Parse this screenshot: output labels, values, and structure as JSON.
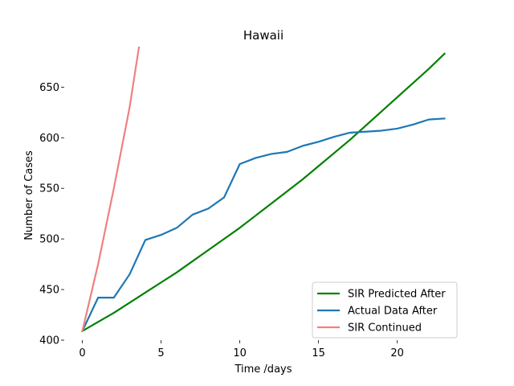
{
  "chart_data": {
    "type": "line",
    "title": "Hawaii",
    "xlabel": "Time /days",
    "ylabel": "Number of Cases",
    "xlim": [
      -1.15,
      24.15
    ],
    "ylim": [
      400,
      690
    ],
    "xticks": [
      0,
      5,
      10,
      15,
      20
    ],
    "yticks": [
      400,
      450,
      500,
      550,
      600,
      650
    ],
    "grid": false,
    "legend_position": "lower-right",
    "series": [
      {
        "name": "SIR Predicted After",
        "color": "#008000",
        "x": [
          0,
          1,
          2,
          3,
          4,
          5,
          6,
          7,
          8,
          9,
          10,
          11,
          12,
          13,
          14,
          15,
          16,
          17,
          18,
          19,
          20,
          21,
          22,
          23
        ],
        "y": [
          409,
          418,
          427,
          437,
          447,
          457,
          467,
          478,
          489,
          500,
          511,
          523,
          535,
          547,
          559,
          572,
          585,
          598,
          612,
          626,
          640,
          654,
          668,
          683
        ]
      },
      {
        "name": "Actual Data After",
        "color": "#1f77b4",
        "x": [
          0,
          1,
          2,
          3,
          4,
          5,
          6,
          7,
          8,
          9,
          10,
          11,
          12,
          13,
          14,
          15,
          16,
          17,
          18,
          19,
          20,
          21,
          22,
          23
        ],
        "y": [
          409,
          442,
          442,
          465,
          499,
          504,
          511,
          524,
          530,
          541,
          574,
          580,
          584,
          586,
          592,
          596,
          601,
          605,
          606,
          607,
          609,
          613,
          618,
          619
        ]
      },
      {
        "name": "SIR Continued",
        "color": "#f08080",
        "x": [
          0,
          1,
          2,
          3,
          3.6
        ],
        "y": [
          409,
          475,
          550,
          630,
          690
        ]
      }
    ]
  }
}
